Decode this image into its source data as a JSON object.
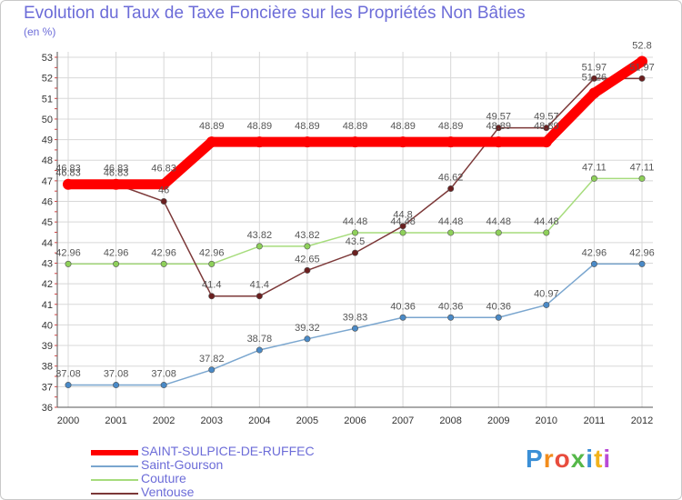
{
  "header": {
    "title": "Evolution du Taux de Taxe Foncière sur les Propriétés Non Bâties",
    "unit": "(en %)"
  },
  "chart_data": {
    "type": "line",
    "title": "Evolution du Taux de Taxe Foncière sur les Propriétés Non Bâties",
    "ylabel": "(en %)",
    "xlabel": "",
    "x": [
      "2000",
      "2001",
      "2002",
      "2003",
      "2004",
      "2005",
      "2006",
      "2007",
      "2008",
      "2009",
      "2010",
      "2011",
      "2012"
    ],
    "ylim": [
      36,
      53
    ],
    "yticks": [
      "36",
      "37",
      "38",
      "39",
      "40",
      "41",
      "42",
      "43",
      "44",
      "45",
      "46",
      "47",
      "48",
      "49",
      "50",
      "51",
      "52",
      "53"
    ],
    "grid": true,
    "legend_position": "bottom-left",
    "series": [
      {
        "name": "SAINT-SULPICE-DE-RUFFEC",
        "color": "#ff0000",
        "marker": "#ff0000",
        "values": [
          46.83,
          46.83,
          46.83,
          48.89,
          48.89,
          48.89,
          48.89,
          48.89,
          48.89,
          48.89,
          48.89,
          51.26,
          52.8
        ],
        "labels": [
          "46.83",
          "46.83",
          "46.83",
          "48.89",
          "48.89",
          "48.89",
          "48.89",
          "48.89",
          "48.89",
          "48.89",
          "48.89",
          "51.26",
          "52.8"
        ]
      },
      {
        "name": "Saint-Gourson",
        "color": "#7aa6cf",
        "marker": "#4a8ac7",
        "values": [
          37.08,
          37.08,
          37.08,
          37.82,
          38.78,
          39.32,
          39.83,
          40.36,
          40.36,
          40.36,
          40.97,
          42.96,
          42.96
        ],
        "labels": [
          "37.08",
          "37.08",
          "37.08",
          "37.82",
          "38.78",
          "39.32",
          "39.83",
          "40.36",
          "40.36",
          "40.36",
          "40.97",
          "42.96",
          "42.96"
        ]
      },
      {
        "name": "Couture",
        "color": "#a6dc7c",
        "marker": "#8ed05a",
        "values": [
          42.96,
          42.96,
          42.96,
          42.96,
          43.82,
          43.82,
          44.48,
          44.48,
          44.48,
          44.48,
          44.48,
          47.11,
          47.11
        ],
        "labels": [
          "42.96",
          "42.96",
          "42.96",
          "42.96",
          "43.82",
          "43.82",
          "44.48",
          "44.48",
          "44.48",
          "44.48",
          "44.48",
          "47.11",
          "47.11"
        ]
      },
      {
        "name": "Ventouse",
        "color": "#7c3838",
        "marker": "#6b1f1f",
        "values": [
          46.83,
          46.83,
          46,
          41.4,
          41.4,
          42.65,
          43.5,
          44.8,
          46.62,
          49.57,
          49.57,
          51.97,
          51.97
        ],
        "labels": [
          "46.83",
          "46.83",
          "46",
          "41.4",
          "41.4",
          "42.65",
          "43.5",
          "44.8",
          "46.62",
          "49.57",
          "49.57",
          "51.97",
          "51.97"
        ]
      }
    ]
  },
  "logo": {
    "text": "Proxiti",
    "letters": [
      "P",
      "r",
      "o",
      "x",
      "i",
      "t",
      "i"
    ],
    "colors": [
      "#3b8fd6",
      "#f28c1c",
      "#e84c3d",
      "#56b84a",
      "#3b8fd6",
      "#f2b31c",
      "#b94ad6"
    ]
  }
}
